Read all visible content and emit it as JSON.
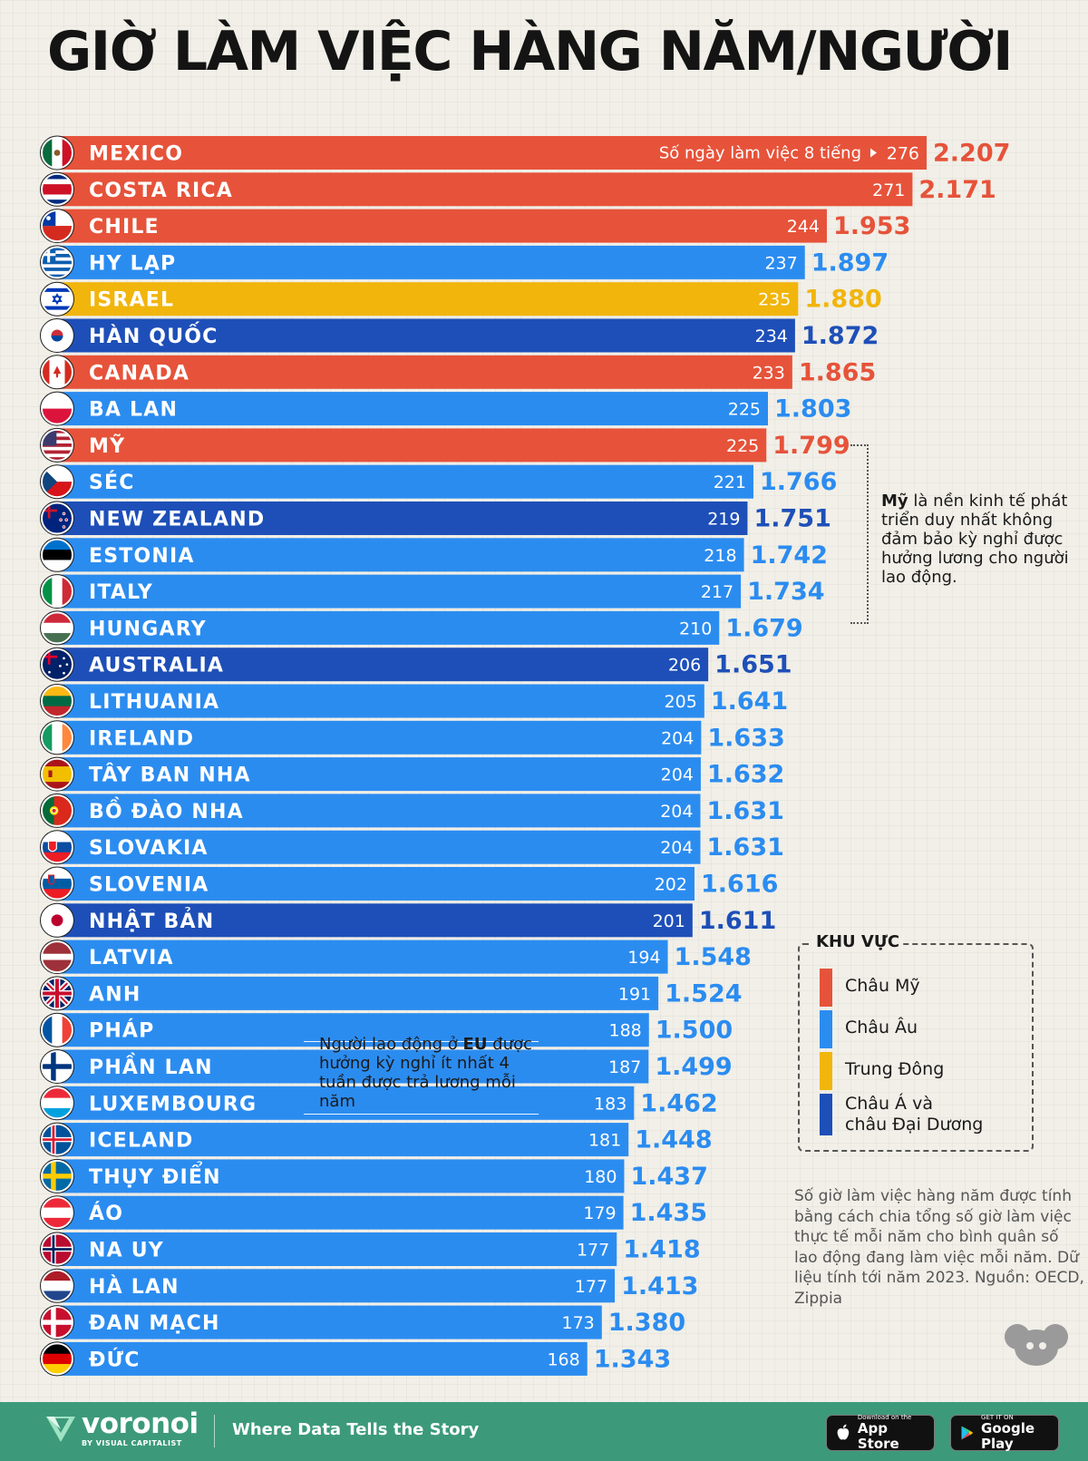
{
  "title": "GIỜ LÀM VIỆC HÀNG NĂM/NGƯỜI",
  "colors": {
    "americas": "#e6533a",
    "europe": "#2b8cf0",
    "middle_east": "#f1b50c",
    "asia_oceania": "#1e4fb8"
  },
  "chart_data": {
    "type": "bar",
    "orientation": "horizontal",
    "title": "GIỜ LÀM VIỆC HÀNG NĂM/NGƯỜI",
    "value_label": "",
    "secondary_label": "Số ngày làm việc 8 tiếng",
    "categories": [
      "MEXICO",
      "COSTA RICA",
      "CHILE",
      "HY LẠP",
      "ISRAEL",
      "HÀN QUỐC",
      "CANADA",
      "BA LAN",
      "MỸ",
      "SÉC",
      "NEW ZEALAND",
      "ESTONIA",
      "ITALY",
      "HUNGARY",
      "AUSTRALIA",
      "LITHUANIA",
      "IRELAND",
      "TÂY BAN NHA",
      "BỒ ĐÀO NHA",
      "SLOVAKIA",
      "SLOVENIA",
      "NHẬT BẢN",
      "LATVIA",
      "ANH",
      "PHÁP",
      "PHẦN LAN",
      "LUXEMBOURG",
      "ICELAND",
      "THỤY ĐIỂN",
      "ÁO",
      "NA UY",
      "HÀ LAN",
      "ĐAN MẠCH",
      "ĐỨC"
    ],
    "values": [
      2207,
      2171,
      1953,
      1897,
      1880,
      1872,
      1865,
      1803,
      1799,
      1766,
      1751,
      1742,
      1734,
      1679,
      1651,
      1641,
      1633,
      1632,
      1631,
      1631,
      1616,
      1611,
      1548,
      1524,
      1500,
      1499,
      1462,
      1448,
      1437,
      1435,
      1418,
      1413,
      1380,
      1343
    ],
    "value_labels": [
      "2.207",
      "2.171",
      "1.953",
      "1.897",
      "1.880",
      "1.872",
      "1.865",
      "1.803",
      "1.799",
      "1.766",
      "1.751",
      "1.742",
      "1.734",
      "1.679",
      "1.651",
      "1.641",
      "1.633",
      "1.632",
      "1.631",
      "1.631",
      "1.616",
      "1.611",
      "1.548",
      "1.524",
      "1.500",
      "1.499",
      "1.462",
      "1.448",
      "1.437",
      "1.435",
      "1.418",
      "1.413",
      "1.380",
      "1.343"
    ],
    "days": [
      276,
      271,
      244,
      237,
      235,
      234,
      233,
      225,
      225,
      221,
      219,
      218,
      217,
      210,
      206,
      205,
      204,
      204,
      204,
      204,
      202,
      201,
      194,
      191,
      188,
      187,
      183,
      181,
      180,
      179,
      177,
      177,
      173,
      168
    ],
    "regions": [
      "americas",
      "americas",
      "americas",
      "europe",
      "middle_east",
      "asia_oceania",
      "americas",
      "europe",
      "americas",
      "europe",
      "asia_oceania",
      "europe",
      "europe",
      "europe",
      "asia_oceania",
      "europe",
      "europe",
      "europe",
      "europe",
      "europe",
      "europe",
      "asia_oceania",
      "europe",
      "europe",
      "europe",
      "europe",
      "europe",
      "europe",
      "europe",
      "europe",
      "europe",
      "europe",
      "europe",
      "europe"
    ],
    "flags": [
      "mexico-flag",
      "costa-rica-flag",
      "chile-flag",
      "greece-flag",
      "israel-flag",
      "south-korea-flag",
      "canada-flag",
      "poland-flag",
      "usa-flag",
      "czechia-flag",
      "new-zealand-flag",
      "estonia-flag",
      "italy-flag",
      "hungary-flag",
      "australia-flag",
      "lithuania-flag",
      "ireland-flag",
      "spain-flag",
      "portugal-flag",
      "slovakia-flag",
      "slovenia-flag",
      "japan-flag",
      "latvia-flag",
      "uk-flag",
      "france-flag",
      "finland-flag",
      "luxembourg-flag",
      "iceland-flag",
      "sweden-flag",
      "austria-flag",
      "norway-flag",
      "netherlands-flag",
      "denmark-flag",
      "germany-flag"
    ]
  },
  "annotations": {
    "us_bold": "Mỹ",
    "us_text": " là nền kinh tế phát triển duy nhất không đảm bảo kỳ nghỉ được hưởng lương cho người lao động.",
    "eu_pre": "Người lao động ở ",
    "eu_bold": "EU",
    "eu_post": " được hưởng kỳ nghỉ ít nhất 4 tuần được trả lương mỗi năm"
  },
  "legend": {
    "title": "KHU VỰC",
    "items": [
      {
        "label": "Châu Mỹ",
        "region": "americas"
      },
      {
        "label": "Châu Âu",
        "region": "europe"
      },
      {
        "label": "Trung Đông",
        "region": "middle_east"
      },
      {
        "label": "Châu Á và\nchâu Đại Dương",
        "region": "asia_oceania"
      }
    ]
  },
  "note": "Số giờ làm việc hàng năm được tính bằng cách chia tổng số giờ làm việc thực tế mỗi năm cho bình quân số lao động đang làm việc mỗi năm. Dữ liệu tính tới năm 2023. Nguồn: OECD, Zippia",
  "footer": {
    "brand": "voronoi",
    "brand_sub": "BY VISUAL CAPITALIST",
    "tagline": "Where Data Tells the Story",
    "appstore_small": "Download on the",
    "appstore_big": "App Store",
    "playstore_small": "GET IT ON",
    "playstore_big": "Google Play"
  }
}
